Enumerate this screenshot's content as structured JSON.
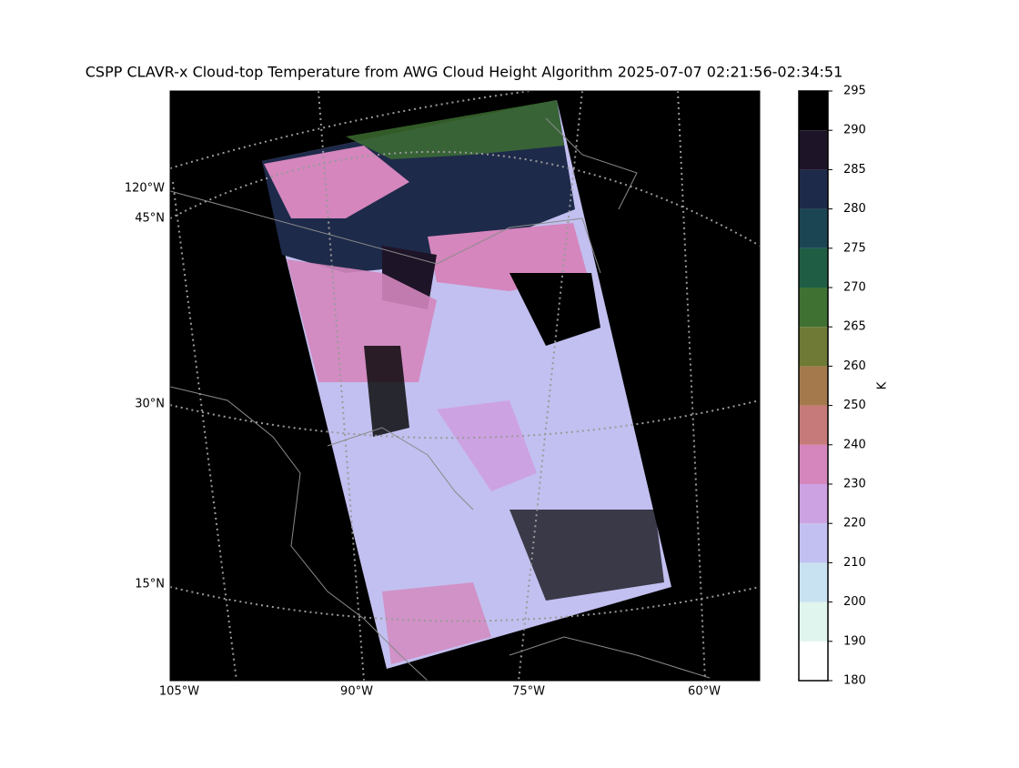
{
  "title": "CSPP CLAVR-x Cloud-top Temperature from AWG Cloud Height Algorithm 2025-07-07 02:21:56-02:34:51",
  "map": {
    "lon_labels": [
      "105°W",
      "90°W",
      "75°W",
      "60°W"
    ],
    "lat_labels": [
      "120°W",
      "45°N",
      "30°N",
      "15°N"
    ]
  },
  "colorbar": {
    "label": "K",
    "ticks": [
      180,
      190,
      200,
      210,
      220,
      230,
      240,
      250,
      260,
      265,
      270,
      275,
      280,
      285,
      290,
      295
    ],
    "colors": [
      "#ffffff",
      "#e0f5ee",
      "#c8e2f2",
      "#c2c0f0",
      "#cda2e2",
      "#d486bd",
      "#c77a7a",
      "#a4794c",
      "#6e7a35",
      "#3f7232",
      "#1f5e45",
      "#1b4552",
      "#1e2a4a",
      "#1e1428",
      "#000000"
    ]
  }
}
